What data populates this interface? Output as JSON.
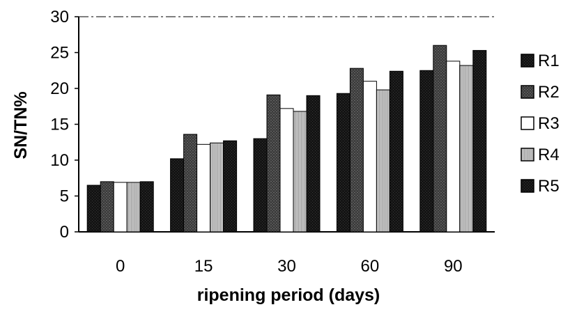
{
  "chart_data": {
    "type": "bar",
    "xlabel": "ripening period (days)",
    "ylabel": "SN/TN%",
    "categories": [
      "0",
      "15",
      "30",
      "60",
      "90"
    ],
    "ylim": [
      0,
      30
    ],
    "yticks": [
      "0",
      "5",
      "10",
      "15",
      "20",
      "25",
      "30"
    ],
    "grid": false,
    "legend_position": "right",
    "series": [
      {
        "name": "R1",
        "values": [
          6.5,
          10.2,
          13.0,
          19.3,
          22.5
        ],
        "color": "#151515",
        "pattern": "dark"
      },
      {
        "name": "R2",
        "values": [
          7.0,
          13.6,
          19.1,
          22.8,
          26.0
        ],
        "color": "#4a4a4a",
        "pattern": "dark-grey"
      },
      {
        "name": "R3",
        "values": [
          6.9,
          12.2,
          17.2,
          21.0,
          23.8
        ],
        "color": "#ffffff",
        "pattern": "white"
      },
      {
        "name": "R4",
        "values": [
          6.9,
          12.4,
          16.8,
          19.8,
          23.2
        ],
        "color": "#bdbdbd",
        "pattern": "light-grey"
      },
      {
        "name": "R5",
        "values": [
          7.0,
          12.7,
          19.0,
          22.4,
          25.3
        ],
        "color": "#0d0d0d",
        "pattern": "dark"
      }
    ]
  }
}
